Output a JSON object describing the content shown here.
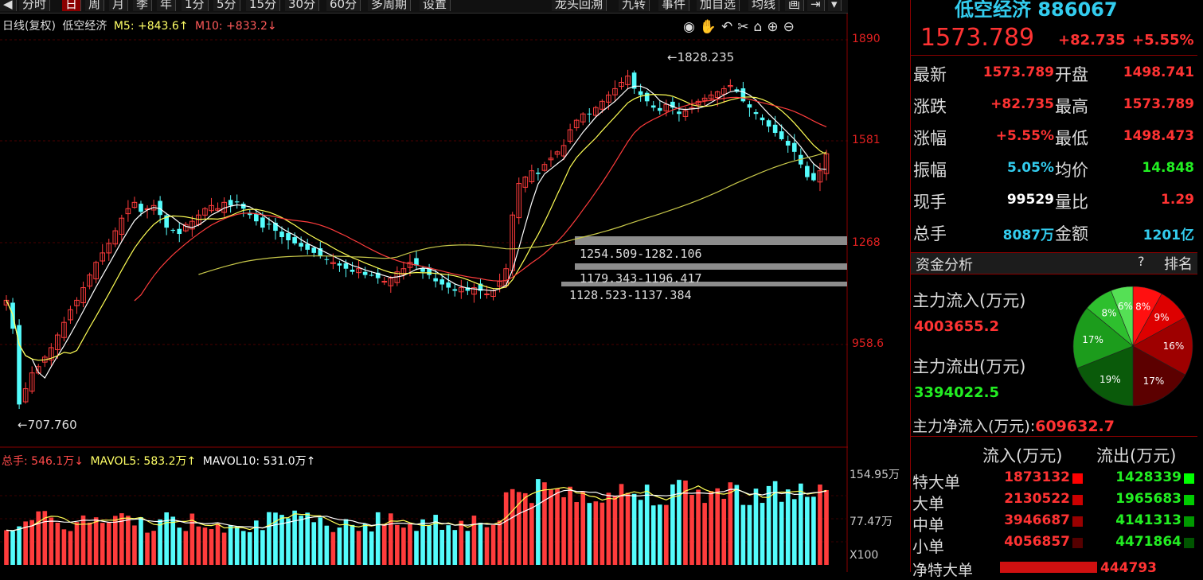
{
  "toolbar": {
    "left_tabs": [
      "分时",
      "日",
      "周",
      "月",
      "季",
      "年",
      "1分",
      "5分",
      "15分",
      "30分",
      "60分",
      "多周期",
      "设置"
    ],
    "active_tab": "日",
    "right_tabs": [
      "龙头回溯",
      "九转",
      "事件",
      "加自选",
      "均线",
      "画"
    ]
  },
  "chart": {
    "info": {
      "period": "日线(复权)",
      "name": "低空经济",
      "m5": "M5: +843.6↑",
      "m10": "M10: +833.2↓"
    },
    "price_axis": [
      "1890",
      "1581",
      "1268",
      "958.6"
    ],
    "high_label": "1828.235",
    "low_label": "707.760",
    "zones": [
      "1254.509-1282.106",
      "1179.343-1196.417",
      "1128.523-1137.384"
    ],
    "volume_info": {
      "total": "总手: 546.1万↓",
      "mavol5": "MAVOL5: 583.2万↑",
      "mavol10": "MAVOL10: 531.0万↑"
    },
    "volume_axis": [
      "154.95万",
      "77.47万",
      "X100"
    ]
  },
  "chart_data": {
    "type": "candlestick",
    "ylim": [
      650,
      1960
    ],
    "close": [
      1110,
      1020,
      780,
      830,
      880,
      900,
      930,
      960,
      1000,
      1040,
      1080,
      1110,
      1150,
      1190,
      1230,
      1260,
      1290,
      1330,
      1370,
      1400,
      1420,
      1390,
      1400,
      1410,
      1380,
      1340,
      1330,
      1320,
      1350,
      1360,
      1380,
      1400,
      1410,
      1400,
      1420,
      1410,
      1420,
      1400,
      1380,
      1360,
      1340,
      1350,
      1330,
      1310,
      1300,
      1290,
      1280,
      1270,
      1260,
      1250,
      1240,
      1230,
      1220,
      1210,
      1200,
      1210,
      1190,
      1190,
      1180,
      1170,
      1180,
      1200,
      1210,
      1230,
      1220,
      1200,
      1190,
      1170,
      1160,
      1150,
      1140,
      1150,
      1140,
      1150,
      1140,
      1130,
      1140,
      1170,
      1210,
      1380,
      1480,
      1500,
      1520,
      1510,
      1540,
      1560,
      1580,
      1600,
      1650,
      1680,
      1700,
      1700,
      1720,
      1740,
      1760,
      1780,
      1800,
      1820,
      1780,
      1760,
      1740,
      1720,
      1710,
      1730,
      1720,
      1700,
      1710,
      1720,
      1740,
      1750,
      1760,
      1770,
      1780,
      1790,
      1770,
      1740,
      1720,
      1700,
      1680,
      1660,
      1640,
      1620,
      1600,
      1580,
      1540,
      1500,
      1490,
      1520,
      1574
    ],
    "ma_lines": [
      "MA5",
      "MA10",
      "MA20",
      "MA60"
    ],
    "price_high": 1828.235,
    "price_low": 707.76,
    "volume_max": 154.95
  },
  "quote": {
    "title": "低空经济 886067",
    "price": "1573.789",
    "change": "+82.735",
    "change_pct": "+5.55%",
    "rows": [
      {
        "l1": "最新",
        "v1": "1573.789",
        "c1": "red",
        "l2": "开盘",
        "v2": "1498.741",
        "c2": "red"
      },
      {
        "l1": "涨跌",
        "v1": "+82.735",
        "c1": "red",
        "l2": "最高",
        "v2": "1573.789",
        "c2": "red"
      },
      {
        "l1": "涨幅",
        "v1": "+5.55%",
        "c1": "red",
        "l2": "最低",
        "v2": "1498.473",
        "c2": "red"
      },
      {
        "l1": "振幅",
        "v1": "5.05%",
        "c1": "cyan",
        "l2": "均价",
        "v2": "14.848",
        "c2": "green"
      },
      {
        "l1": "现手",
        "v1": "99529",
        "c1": "white",
        "l2": "量比",
        "v2": "1.29",
        "c2": "red"
      },
      {
        "l1": "总手",
        "v1": "8087万",
        "c1": "cyan",
        "l2": "金额",
        "v2": "1201亿",
        "c2": "cyan"
      }
    ]
  },
  "fund": {
    "header": "资金分析",
    "help": "?",
    "rank": "排名",
    "inflow_label": "主力流入(万元)",
    "inflow_value": "4003655.2",
    "outflow_label": "主力流出(万元)",
    "outflow_value": "3394022.5",
    "net_label": "主力净流入(万元):",
    "net_value": "609632.7",
    "pie": [
      {
        "label": "8%",
        "value": 8,
        "color": "#ff1010"
      },
      {
        "label": "9%",
        "value": 9,
        "color": "#dd0000"
      },
      {
        "label": "16%",
        "value": 16,
        "color": "#9e0000"
      },
      {
        "label": "17%",
        "value": 17,
        "color": "#5c0000"
      },
      {
        "label": "19%",
        "value": 19,
        "color": "#0a5a0a"
      },
      {
        "label": "17%",
        "value": 17,
        "color": "#1c9c1c"
      },
      {
        "label": "8%",
        "value": 8,
        "color": "#2ebf2e"
      },
      {
        "label": "6%",
        "value": 6,
        "color": "#55e055"
      }
    ],
    "table_head": {
      "in": "流入(万元)",
      "out": "流出(万元)"
    },
    "rows": [
      {
        "label": "特大单",
        "in": "1873132",
        "out": "1428339",
        "ci": "#ff0000",
        "co": "#00ff00"
      },
      {
        "label": "大单",
        "in": "2130522",
        "out": "1965683",
        "ci": "#cc0000",
        "co": "#00cc00"
      },
      {
        "label": "中单",
        "in": "3946687",
        "out": "4141313",
        "ci": "#990000",
        "co": "#009900"
      },
      {
        "label": "小单",
        "in": "4056857",
        "out": "4471864",
        "ci": "#550000",
        "co": "#005500"
      }
    ],
    "net_special_label": "净特大单",
    "net_special_value": "444793"
  }
}
